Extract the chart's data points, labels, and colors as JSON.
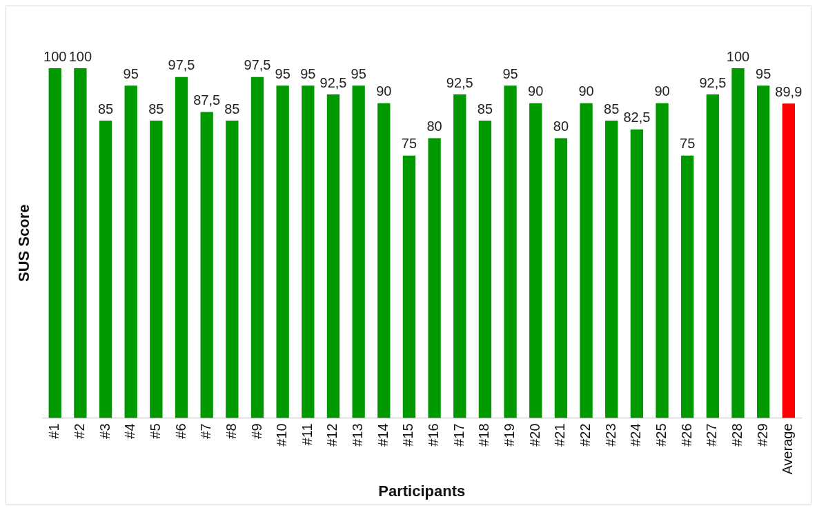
{
  "chart_data": {
    "type": "bar",
    "xlabel": "Participants",
    "ylabel": "SUS Score",
    "categories": [
      "#1",
      "#2",
      "#3",
      "#4",
      "#5",
      "#6",
      "#7",
      "#8",
      "#9",
      "#10",
      "#11",
      "#12",
      "#13",
      "#14",
      "#15",
      "#16",
      "#17",
      "#18",
      "#19",
      "#20",
      "#21",
      "#22",
      "#23",
      "#24",
      "#25",
      "#26",
      "#27",
      "#28",
      "#29",
      "Average"
    ],
    "values": [
      100,
      100,
      85,
      95,
      85,
      97.5,
      87.5,
      85,
      97.5,
      95,
      95,
      92.5,
      95,
      90,
      75,
      80,
      92.5,
      85,
      95,
      90,
      80,
      90,
      85,
      82.5,
      90,
      75,
      92.5,
      100,
      95,
      89.9
    ],
    "value_labels": [
      "100",
      "100",
      "85",
      "95",
      "85",
      "97,5",
      "87,5",
      "85",
      "97,5",
      "95",
      "95",
      "92,5",
      "95",
      "90",
      "75",
      "80",
      "92,5",
      "85",
      "95",
      "90",
      "80",
      "90",
      "85",
      "82,5",
      "90",
      "75",
      "92,5",
      "100",
      "95",
      "89,9"
    ],
    "colors": [
      "#009900",
      "#009900",
      "#009900",
      "#009900",
      "#009900",
      "#009900",
      "#009900",
      "#009900",
      "#009900",
      "#009900",
      "#009900",
      "#009900",
      "#009900",
      "#009900",
      "#009900",
      "#009900",
      "#009900",
      "#009900",
      "#009900",
      "#009900",
      "#009900",
      "#009900",
      "#009900",
      "#009900",
      "#009900",
      "#009900",
      "#009900",
      "#009900",
      "#009900",
      "#ff0000"
    ],
    "grid": false,
    "legend": false
  }
}
